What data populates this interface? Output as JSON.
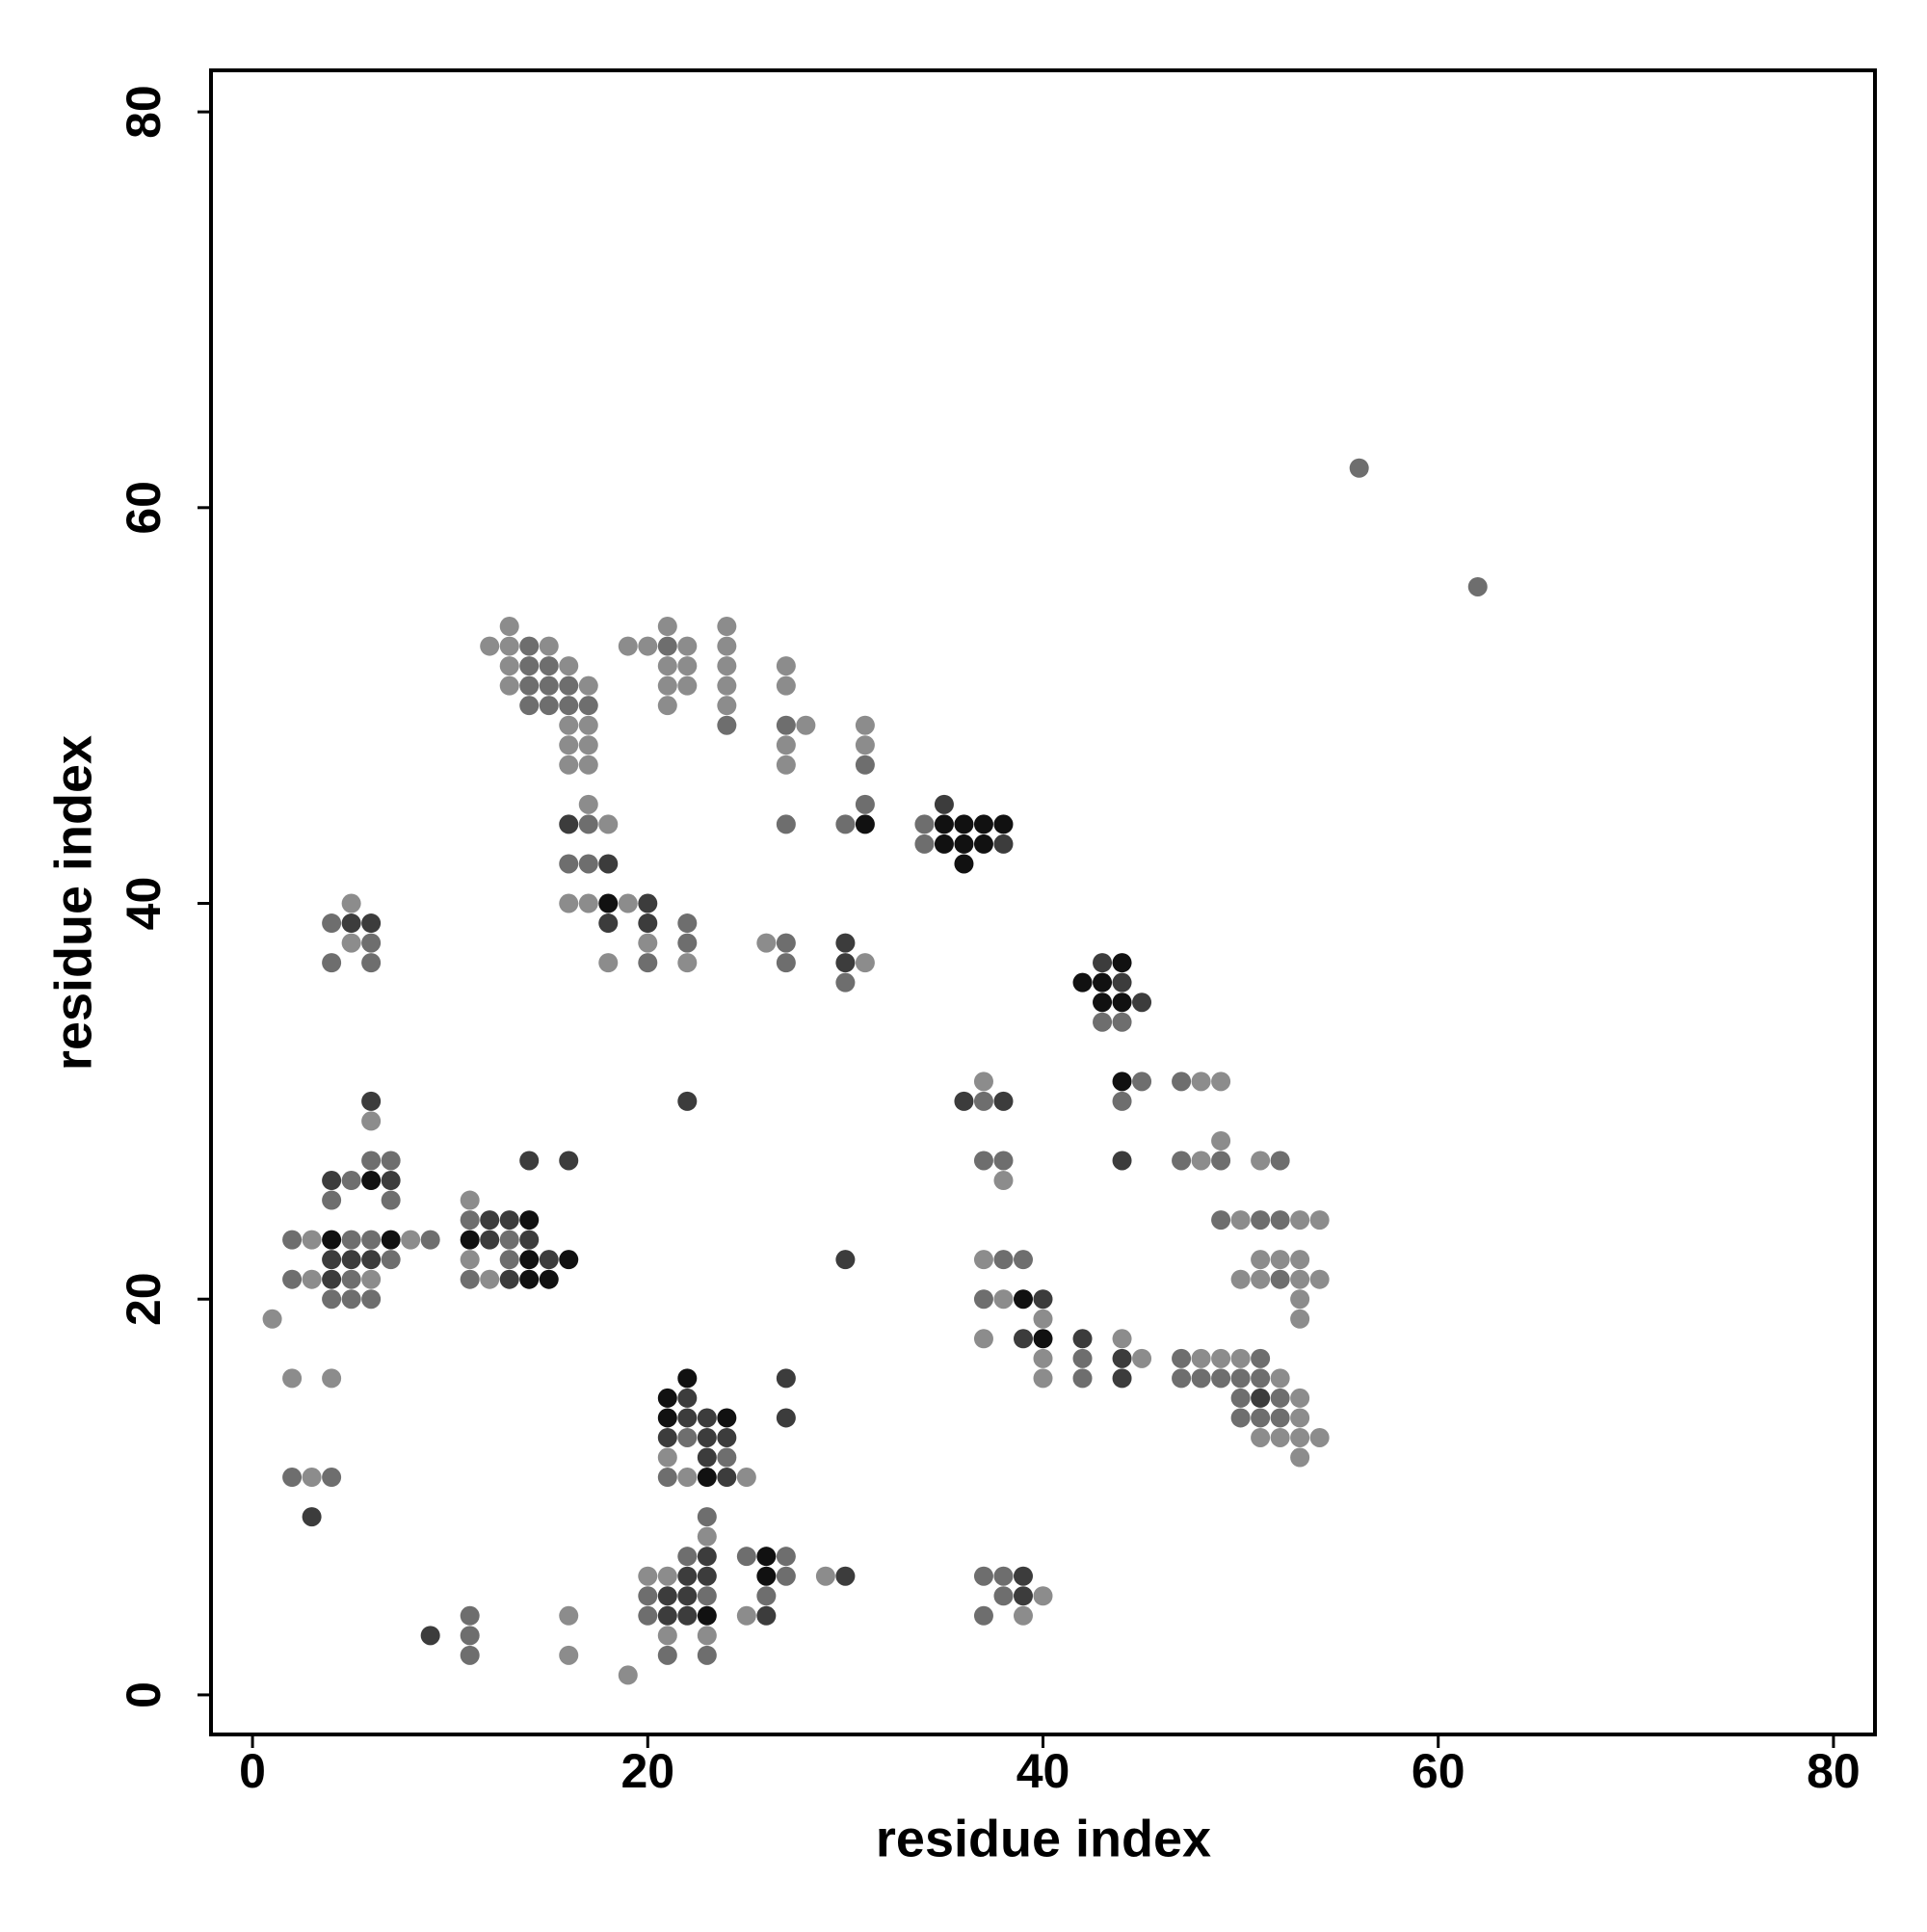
{
  "chart_data": {
    "type": "scatter",
    "xlabel": "residue index",
    "ylabel": "residue index",
    "xlim": [
      -2.1,
      82.1
    ],
    "ylim": [
      -2.0,
      82.1
    ],
    "xticks": [
      0,
      20,
      40,
      60,
      80
    ],
    "yticks": [
      0,
      20,
      40,
      60,
      80
    ],
    "grid": false,
    "series": [
      {
        "color": "#8c8c8c",
        "x": [
          13,
          21,
          24,
          12,
          13,
          15,
          19,
          20,
          22,
          24,
          13,
          16,
          21,
          22,
          24,
          27,
          13,
          17,
          21,
          22,
          24,
          27,
          21,
          24,
          16,
          17,
          28,
          31,
          16,
          17,
          27,
          31,
          16,
          17,
          27,
          17,
          18,
          5,
          16,
          17,
          19,
          5,
          20,
          26,
          18,
          22,
          31,
          37,
          48,
          49,
          6,
          49,
          48,
          51,
          38,
          11,
          50,
          53,
          54,
          3,
          8,
          11,
          37,
          51,
          52,
          53,
          3,
          6,
          12,
          50,
          51,
          53,
          54,
          38,
          53,
          1,
          40,
          53,
          37,
          44,
          40,
          45,
          48,
          49,
          50,
          2,
          4,
          40,
          52,
          53,
          53,
          51,
          52,
          53,
          54,
          21,
          53,
          3,
          22,
          25,
          23,
          20,
          21,
          29,
          40,
          16,
          25,
          39,
          21,
          23,
          16,
          19
        ],
        "y": [
          54,
          54,
          54,
          53,
          53,
          53,
          53,
          53,
          53,
          53,
          52,
          52,
          52,
          52,
          52,
          52,
          51,
          51,
          51,
          51,
          51,
          51,
          50,
          50,
          49,
          49,
          49,
          49,
          48,
          48,
          48,
          48,
          47,
          47,
          47,
          45,
          44,
          40,
          40,
          40,
          40,
          38,
          38,
          38,
          37,
          37,
          37,
          31,
          31,
          31,
          29,
          28,
          27,
          27,
          26,
          25,
          24,
          24,
          24,
          23,
          23,
          22,
          22,
          22,
          22,
          22,
          21,
          21,
          21,
          21,
          21,
          21,
          21,
          20,
          20,
          19,
          19,
          19,
          18,
          18,
          17,
          17,
          17,
          17,
          17,
          16,
          16,
          16,
          16,
          15,
          14,
          13,
          13,
          13,
          13,
          12,
          12,
          11,
          11,
          11,
          8,
          6,
          6,
          6,
          5,
          4,
          4,
          4,
          3,
          3,
          2,
          1
        ]
      },
      {
        "color": "#6e6e6e",
        "x": [
          56,
          62,
          14,
          21,
          14,
          15,
          14,
          15,
          16,
          14,
          15,
          16,
          17,
          24,
          27,
          31,
          31,
          17,
          27,
          30,
          34,
          34,
          16,
          17,
          4,
          22,
          6,
          22,
          27,
          4,
          6,
          20,
          27,
          30,
          43,
          44,
          45,
          47,
          37,
          44,
          6,
          7,
          37,
          38,
          47,
          49,
          52,
          5,
          4,
          7,
          11,
          49,
          51,
          52,
          2,
          5,
          6,
          9,
          13,
          7,
          13,
          38,
          39,
          2,
          5,
          11,
          52,
          4,
          5,
          6,
          37,
          42,
          47,
          51,
          42,
          47,
          48,
          49,
          50,
          51,
          50,
          52,
          50,
          51,
          52,
          22,
          24,
          2,
          4,
          21,
          23,
          22,
          25,
          27,
          27,
          37,
          38,
          20,
          23,
          26,
          38,
          11,
          20,
          37,
          11,
          11,
          21,
          23
        ],
        "y": [
          62,
          56,
          53,
          53,
          52,
          52,
          51,
          51,
          51,
          50,
          50,
          50,
          50,
          49,
          49,
          47,
          45,
          44,
          44,
          44,
          44,
          43,
          42,
          42,
          39,
          39,
          38,
          38,
          38,
          37,
          37,
          37,
          37,
          36,
          34,
          34,
          31,
          31,
          30,
          30,
          27,
          27,
          27,
          27,
          27,
          27,
          27,
          26,
          25,
          25,
          24,
          24,
          24,
          24,
          23,
          23,
          23,
          23,
          23,
          22,
          22,
          22,
          22,
          21,
          21,
          21,
          21,
          20,
          20,
          20,
          20,
          17,
          17,
          17,
          16,
          16,
          16,
          16,
          16,
          16,
          15,
          15,
          14,
          14,
          14,
          13,
          12,
          11,
          11,
          11,
          9,
          7,
          7,
          7,
          6,
          6,
          6,
          5,
          5,
          5,
          5,
          4,
          4,
          4,
          3,
          2,
          2,
          2
        ]
      },
      {
        "color": "#3c3c3c",
        "x": [
          35,
          16,
          38,
          18,
          20,
          5,
          6,
          18,
          20,
          30,
          30,
          43,
          44,
          45,
          6,
          22,
          36,
          38,
          14,
          16,
          44,
          4,
          7,
          12,
          13,
          12,
          14,
          4,
          5,
          6,
          15,
          30,
          4,
          13,
          40,
          39,
          42,
          44,
          27,
          44,
          22,
          51,
          22,
          23,
          27,
          21,
          23,
          24,
          23,
          24,
          3,
          23,
          22,
          23,
          30,
          39,
          21,
          22,
          39,
          21,
          22,
          26,
          9
        ],
        "y": [
          45,
          44,
          43,
          42,
          40,
          39,
          39,
          39,
          39,
          38,
          37,
          37,
          36,
          35,
          30,
          30,
          30,
          30,
          27,
          27,
          27,
          26,
          26,
          24,
          24,
          23,
          23,
          22,
          22,
          22,
          22,
          22,
          21,
          21,
          20,
          18,
          18,
          17,
          16,
          16,
          15,
          15,
          14,
          14,
          14,
          13,
          13,
          13,
          12,
          11,
          9,
          7,
          6,
          6,
          6,
          6,
          5,
          5,
          5,
          4,
          4,
          4,
          3
        ]
      },
      {
        "color": "#111111",
        "x": [
          31,
          35,
          36,
          37,
          38,
          35,
          36,
          37,
          36,
          18,
          44,
          42,
          43,
          43,
          44,
          44,
          6,
          14,
          4,
          7,
          11,
          14,
          16,
          14,
          15,
          39,
          40,
          22,
          21,
          21,
          24,
          23,
          26,
          26,
          23
        ],
        "y": [
          44,
          44,
          44,
          44,
          44,
          43,
          43,
          43,
          42,
          40,
          37,
          36,
          36,
          35,
          35,
          31,
          26,
          24,
          23,
          23,
          23,
          22,
          22,
          21,
          21,
          20,
          18,
          16,
          15,
          14,
          14,
          11,
          7,
          6,
          4
        ]
      }
    ]
  }
}
